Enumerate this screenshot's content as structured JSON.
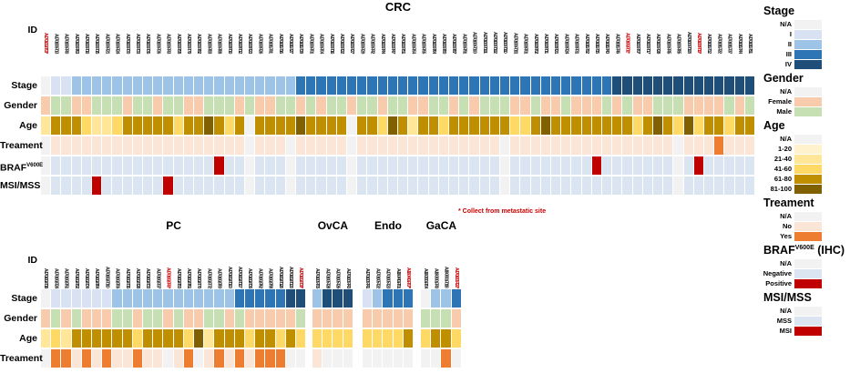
{
  "note": "* Collect from metastatic site",
  "colors": {
    "NA": "#f2f2f2",
    "I": "#d9e2f3",
    "II": "#9dc3e6",
    "III": "#2e75b6",
    "IV": "#1f4e79",
    "F": "#f8cbad",
    "M": "#c6e0b4",
    "1-20": "#fff2cc",
    "21-40": "#ffe699",
    "41-60": "#ffd966",
    "61-80": "#bf8f00",
    "81-100": "#806000",
    "No": "#fbe5d6",
    "Yes": "#ed7d31",
    "Neg": "#dbe5f1",
    "Pos": "#c00000",
    "MSS": "#dbe5f1",
    "MSI": "#c00000",
    "red_label": "#cc0000"
  },
  "row_labels": {
    "top": [
      {
        "text": "ID"
      },
      {
        "text": "Stage"
      },
      {
        "text": "Gender"
      },
      {
        "text": "Age"
      },
      {
        "text": "Treament"
      },
      {
        "text": "BRAF",
        "sup": "V600E"
      },
      {
        "text": "MSI/MSS"
      }
    ],
    "bottom": [
      {
        "text": "ID"
      },
      {
        "text": "Stage"
      },
      {
        "text": "Gender"
      },
      {
        "text": "Age"
      },
      {
        "text": "Treament"
      }
    ]
  },
  "legend": [
    {
      "title": "Stage",
      "items": [
        {
          "label": "N/A",
          "code": "NA"
        },
        {
          "label": "I",
          "code": "I"
        },
        {
          "label": "II",
          "code": "II"
        },
        {
          "label": "III",
          "code": "III"
        },
        {
          "label": "IV",
          "code": "IV"
        }
      ]
    },
    {
      "title": "Gender",
      "items": [
        {
          "label": "N/A",
          "code": "NA"
        },
        {
          "label": "Female",
          "code": "F"
        },
        {
          "label": "Male",
          "code": "M"
        }
      ]
    },
    {
      "title": "Age",
      "items": [
        {
          "label": "N/A",
          "code": "NA"
        },
        {
          "label": "1-20",
          "code": "1-20"
        },
        {
          "label": "21-40",
          "code": "21-40"
        },
        {
          "label": "41-60",
          "code": "41-60"
        },
        {
          "label": "61-80",
          "code": "61-80"
        },
        {
          "label": "81-100",
          "code": "81-100"
        }
      ]
    },
    {
      "title": "Treament",
      "items": [
        {
          "label": "N/A",
          "code": "NA"
        },
        {
          "label": "No",
          "code": "No"
        },
        {
          "label": "Yes",
          "code": "Yes"
        }
      ]
    },
    {
      "title": "BRAF",
      "sup": "V600E",
      "suffix": " (IHC)",
      "items": [
        {
          "label": "N/A",
          "code": "NA"
        },
        {
          "label": "Negative",
          "code": "Neg"
        },
        {
          "label": "Positive",
          "code": "Pos"
        }
      ]
    },
    {
      "title": "MSI/MSS",
      "items": [
        {
          "label": "N/A",
          "code": "NA"
        },
        {
          "label": "MSS",
          "code": "MSS"
        },
        {
          "label": "MSI",
          "code": "MSI"
        }
      ]
    }
  ],
  "chart_data": {
    "type": "heatmap",
    "note": "* Collect from metastatic site",
    "sections": [
      {
        "name": "CRC",
        "area": "top",
        "ids": [
          "A-17-01002-T03*",
          "A-17-01006-T13",
          "A-17-01006-T40",
          "A-17-01006-T63",
          "A-17-01006-T10",
          "A-17-01006-T15",
          "A-17-01006-T21",
          "A-17-01006-T24",
          "A-17-01006-T30",
          "A-17-01006-T33",
          "A-17-01006-T35",
          "A-17-01006-T36",
          "A-17-01006-T43",
          "A-17-01006-T58",
          "A-17-01006-T79",
          "A-17-01006-T82",
          "A-17-01006-T83",
          "A-17-01006-T88",
          "A-17-01008-T10",
          "A-17-01008-T12",
          "A-17-01008-T23",
          "A-17-01008-T26",
          "A-17-01011-T01",
          "A-17-01011-T16",
          "A-17-01011-T27",
          "A-17-01011-T38",
          "A-17-01006-T01",
          "A-17-01006-T04",
          "A-17-01006-T16",
          "A-17-01006-T22",
          "A-17-01006-T27",
          "A-17-01006-T29",
          "A-17-01006-T42",
          "A-17-01006-T44",
          "A-17-01006-T47",
          "A-17-01006-T51",
          "A-17-01006-T54",
          "A-17-01006-T55",
          "A-17-01006-T64",
          "A-17-01006-T80",
          "A-17-01006-T87",
          "A-17-01006-T91",
          "A-17-01006-T100",
          "A-17-01006-T101",
          "A-17-01006-T102",
          "A-17-01006-T110",
          "A-17-01006-T111",
          "A-17-01008-T01",
          "A-17-01008-T02",
          "A-17-01008-T11",
          "A-17-01008-T21",
          "A-17-01008-T24",
          "A-17-01008-T31",
          "A-17-01011-T02",
          "A-17-01011-T15",
          "A-17-01011-T40",
          "A-17-01011-T46",
          "A-17-01002-T11*",
          "A-17-01006-T07",
          "A-17-01006-T17",
          "A-17-01006-T28",
          "A-17-01006-T45",
          "A-17-01006-T85",
          "A-17-01006-T108",
          "A-17-01008-T19*",
          "A-17-01011-T12",
          "A-17-01011-T22",
          "A-17-01011-T37",
          "A-17-01011-T44",
          "A-17-01011-T51"
        ],
        "red": [
          0,
          57,
          64
        ],
        "tracks": {
          "Stage": [
            "NA",
            "I",
            "I",
            "II",
            "II",
            "II",
            "II",
            "II",
            "II",
            "II",
            "II",
            "II",
            "II",
            "II",
            "II",
            "II",
            "II",
            "II",
            "II",
            "II",
            "II",
            "II",
            "II",
            "II",
            "II",
            "III",
            "III",
            "III",
            "III",
            "III",
            "III",
            "III",
            "III",
            "III",
            "III",
            "III",
            "III",
            "III",
            "III",
            "III",
            "III",
            "III",
            "III",
            "III",
            "III",
            "III",
            "III",
            "III",
            "III",
            "III",
            "III",
            "III",
            "III",
            "III",
            "III",
            "III",
            "IV",
            "IV",
            "IV",
            "IV",
            "IV",
            "IV",
            "IV",
            "IV",
            "IV",
            "IV",
            "IV",
            "IV",
            "IV",
            "IV"
          ],
          "Gender": [
            "F",
            "M",
            "M",
            "F",
            "F",
            "M",
            "M",
            "M",
            "F",
            "M",
            "M",
            "F",
            "M",
            "M",
            "F",
            "F",
            "M",
            "M",
            "M",
            "F",
            "M",
            "F",
            "F",
            "M",
            "M",
            "F",
            "M",
            "F",
            "M",
            "M",
            "F",
            "M",
            "M",
            "F",
            "M",
            "M",
            "F",
            "F",
            "M",
            "M",
            "F",
            "M",
            "F",
            "M",
            "M",
            "M",
            "F",
            "F",
            "M",
            "F",
            "F",
            "M",
            "F",
            "F",
            "F",
            "M",
            "F",
            "M",
            "F",
            "F",
            "M",
            "M",
            "M",
            "F",
            "F",
            "F",
            "F",
            "M",
            "F",
            "M"
          ],
          "Age": [
            "21-40",
            "61-80",
            "61-80",
            "61-80",
            "41-60",
            "21-40",
            "21-40",
            "41-60",
            "61-80",
            "61-80",
            "61-80",
            "61-80",
            "61-80",
            "41-60",
            "61-80",
            "61-80",
            "81-100",
            "61-80",
            "41-60",
            "61-80",
            "NA",
            "61-80",
            "61-80",
            "61-80",
            "61-80",
            "81-100",
            "61-80",
            "61-80",
            "61-80",
            "61-80",
            "NA",
            "61-80",
            "61-80",
            "41-60",
            "81-100",
            "61-80",
            "21-40",
            "61-80",
            "61-80",
            "41-60",
            "61-80",
            "61-80",
            "61-80",
            "61-80",
            "61-80",
            "61-80",
            "41-60",
            "41-60",
            "61-80",
            "81-100",
            "61-80",
            "61-80",
            "61-80",
            "61-80",
            "61-80",
            "61-80",
            "61-80",
            "61-80",
            "41-60",
            "61-80",
            "81-100",
            "61-80",
            "41-60",
            "81-100",
            "41-60",
            "61-80",
            "61-80",
            "41-60",
            "61-80",
            "61-80"
          ],
          "Treament": [
            "NA",
            "No",
            "No",
            "No",
            "No",
            "No",
            "No",
            "No",
            "No",
            "No",
            "No",
            "No",
            "No",
            "No",
            "No",
            "No",
            "No",
            "No",
            "No",
            "No",
            "NA",
            "No",
            "No",
            "No",
            "NA",
            "No",
            "No",
            "No",
            "No",
            "No",
            "NA",
            "No",
            "No",
            "No",
            "No",
            "No",
            "No",
            "No",
            "No",
            "No",
            "No",
            "No",
            "No",
            "No",
            "No",
            "NA",
            "No",
            "No",
            "No",
            "No",
            "No",
            "No",
            "No",
            "No",
            "No",
            "No",
            "No",
            "No",
            "No",
            "No",
            "No",
            "No",
            "NA",
            "No",
            "No",
            "No",
            "Yes",
            "No",
            "No",
            "No"
          ],
          "BRAF": [
            "NA",
            "Neg",
            "Neg",
            "Neg",
            "Neg",
            "Neg",
            "Neg",
            "Neg",
            "Neg",
            "Neg",
            "Neg",
            "Neg",
            "Neg",
            "Neg",
            "Neg",
            "Neg",
            "Neg",
            "Pos",
            "Neg",
            "Neg",
            "NA",
            "Neg",
            "Neg",
            "Neg",
            "NA",
            "Neg",
            "Neg",
            "Neg",
            "Neg",
            "Neg",
            "NA",
            "Neg",
            "Neg",
            "Neg",
            "Neg",
            "Neg",
            "Neg",
            "Neg",
            "Neg",
            "Neg",
            "Neg",
            "Neg",
            "Neg",
            "Neg",
            "Neg",
            "NA",
            "Neg",
            "Neg",
            "Neg",
            "Neg",
            "Neg",
            "Neg",
            "Neg",
            "Neg",
            "Pos",
            "Neg",
            "Neg",
            "Neg",
            "Neg",
            "Neg",
            "Neg",
            "Neg",
            "NA",
            "Neg",
            "Pos",
            "Neg",
            "Neg",
            "Neg",
            "Neg",
            "Neg"
          ],
          "MSI/MSS": [
            "NA",
            "MSS",
            "MSS",
            "MSS",
            "MSS",
            "MSI",
            "MSS",
            "MSS",
            "MSS",
            "MSS",
            "MSS",
            "MSS",
            "MSI",
            "MSS",
            "MSS",
            "MSS",
            "MSS",
            "MSS",
            "MSS",
            "MSS",
            "NA",
            "MSS",
            "MSS",
            "MSS",
            "NA",
            "MSS",
            "MSS",
            "MSS",
            "MSS",
            "MSS",
            "NA",
            "MSS",
            "MSS",
            "MSS",
            "MSS",
            "MSS",
            "MSS",
            "MSS",
            "MSS",
            "MSS",
            "MSS",
            "MSS",
            "MSS",
            "MSS",
            "MSS",
            "NA",
            "MSS",
            "MSS",
            "MSS",
            "MSS",
            "MSS",
            "MSS",
            "MSS",
            "MSS",
            "MSS",
            "MSS",
            "MSS",
            "MSS",
            "MSS",
            "MSS",
            "MSS",
            "MSS",
            "NA",
            "MSS",
            "MSS",
            "MSS",
            "MSS",
            "MSS",
            "MSS",
            "MSS"
          ]
        }
      },
      {
        "name": "PC",
        "area": "bottom",
        "ids": [
          "A-17-01002-T18",
          "A-17-01002-T24",
          "A-17-01002-T51",
          "A-17-01002-T52",
          "A-17-01002-T34",
          "A-17-01002-T64",
          "A-17-01002-T110",
          "A-17-01002-T06",
          "A-17-01002-T15",
          "A-17-01002-T28",
          "A-17-01002-T33",
          "A-17-01002-T37",
          "A-17-01002-T40*",
          "A-17-01002-T50",
          "A-17-01002-T61",
          "A-17-01002-T70",
          "A-17-01002-T72",
          "A-17-01002-T80",
          "A-17-01002-T100",
          "A-17-01002-T117",
          "A-17-01002-T36",
          "A-17-01002-T62",
          "A-17-01002-T98",
          "A-17-01002-T128",
          "A-17-01002-T133",
          "A-17-01002-T38*"
        ],
        "red": [
          12,
          25
        ],
        "tracks": {
          "Stage": [
            "NA",
            "I",
            "I",
            "I",
            "I",
            "I",
            "I",
            "II",
            "II",
            "II",
            "II",
            "II",
            "II",
            "II",
            "II",
            "II",
            "II",
            "II",
            "II",
            "III",
            "III",
            "III",
            "III",
            "III",
            "IV",
            "IV"
          ],
          "Gender": [
            "F",
            "M",
            "F",
            "M",
            "F",
            "F",
            "F",
            "M",
            "M",
            "F",
            "M",
            "M",
            "F",
            "M",
            "F",
            "F",
            "M",
            "M",
            "F",
            "M",
            "F",
            "F",
            "F",
            "F",
            "F",
            "M"
          ],
          "Age": [
            "21-40",
            "41-60",
            "21-40",
            "61-80",
            "61-80",
            "61-80",
            "61-80",
            "61-80",
            "61-80",
            "41-60",
            "61-80",
            "61-80",
            "61-80",
            "61-80",
            "41-60",
            "81-100",
            "21-40",
            "61-80",
            "61-80",
            "61-80",
            "41-60",
            "61-80",
            "61-80",
            "41-60",
            "61-80",
            "41-60"
          ],
          "Treament": [
            "NA",
            "Yes",
            "Yes",
            "No",
            "Yes",
            "No",
            "Yes",
            "No",
            "No",
            "Yes",
            "No",
            "No",
            "NA",
            "No",
            "Yes",
            "NA",
            "No",
            "Yes",
            "No",
            "Yes",
            "No",
            "Yes",
            "Yes",
            "Yes",
            "NA",
            "NA"
          ]
        }
      },
      {
        "name": "OvCA",
        "area": "bottom",
        "ids": [
          "A-17-01005-T05",
          "A-17-01005-T28",
          "A-17-01005-T26",
          "A-17-01005-T43"
        ],
        "red": [],
        "tracks": {
          "Stage": [
            "II",
            "IV",
            "IV",
            "IV"
          ],
          "Gender": [
            "F",
            "F",
            "F",
            "F"
          ],
          "Age": [
            "41-60",
            "41-60",
            "41-60",
            "41-60"
          ],
          "Treament": [
            "No",
            "NA",
            "NA",
            "NA"
          ]
        }
      },
      {
        "name": "Endo",
        "area": "bottom",
        "ids": [
          "A-17-01005-T41",
          "A-17-01005-T22",
          "A-17-01005-T23",
          "A-18-04401-T01",
          "A-18-04401-T07*"
        ],
        "red": [
          4
        ],
        "tracks": {
          "Stage": [
            "I",
            "II",
            "III",
            "III",
            "III"
          ],
          "Gender": [
            "F",
            "F",
            "F",
            "F",
            "F"
          ],
          "Age": [
            "41-60",
            "41-60",
            "41-60",
            "41-60",
            "61-80"
          ],
          "Treament": [
            "NA",
            "NA",
            "NA",
            "NA",
            "NA"
          ]
        }
      },
      {
        "name": "GaCA",
        "area": "bottom",
        "ids": [
          "A-18-03001-T04",
          "A-18-03001-T40",
          "A-18-03001-T118",
          "A-17-01005-T20*"
        ],
        "red": [
          3
        ],
        "tracks": {
          "Stage": [
            "NA",
            "II",
            "II",
            "III"
          ],
          "Gender": [
            "M",
            "M",
            "M",
            "F"
          ],
          "Age": [
            "41-60",
            "61-80",
            "61-80",
            "41-60"
          ],
          "Treament": [
            "NA",
            "NA",
            "Yes",
            "NA"
          ]
        }
      }
    ]
  }
}
